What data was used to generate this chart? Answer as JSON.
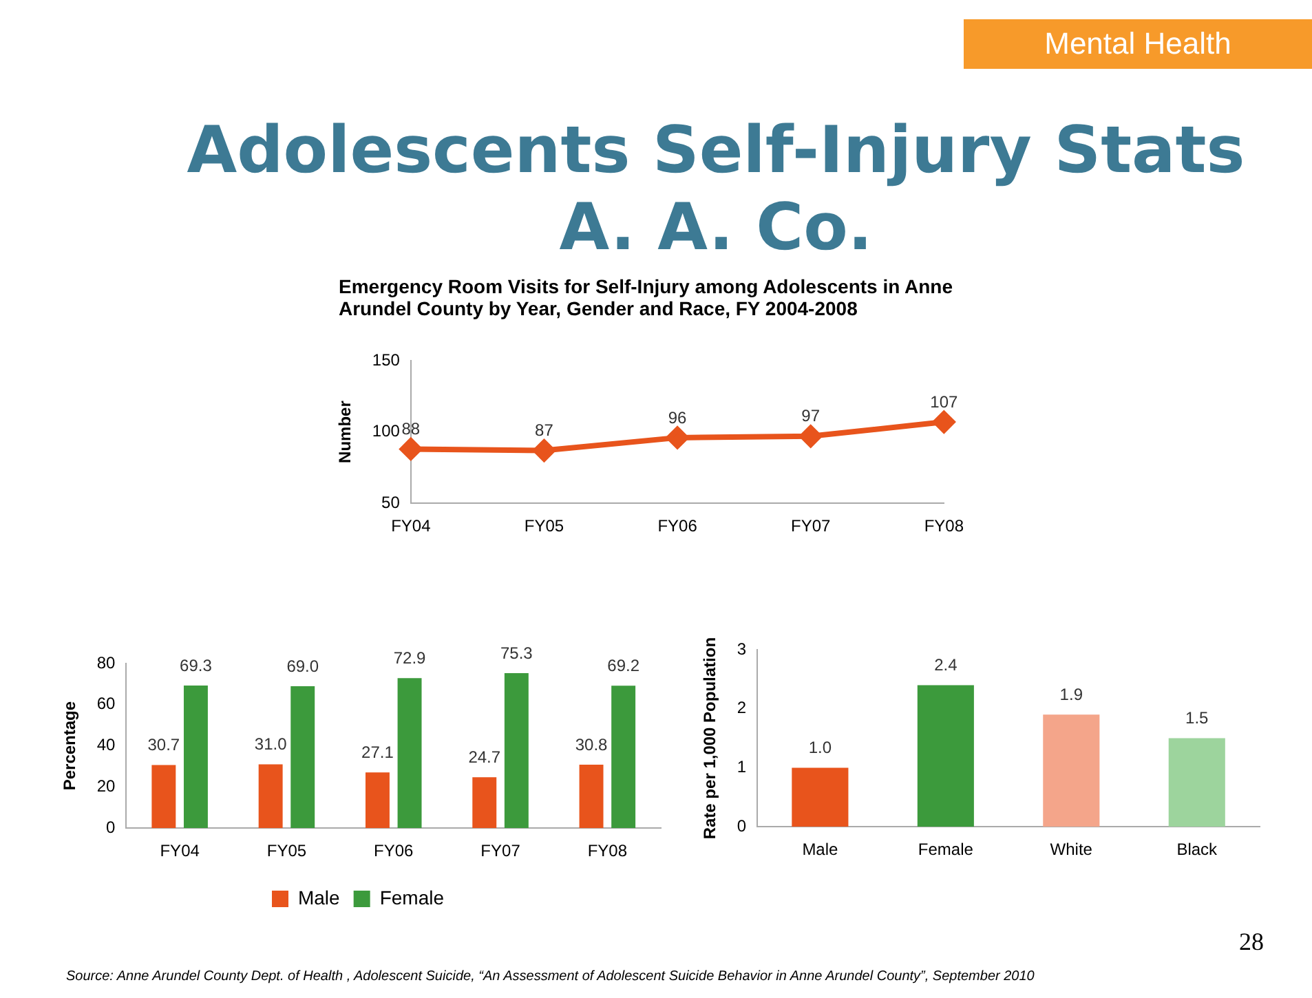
{
  "chart_data": [
    {
      "type": "other",
      "title": "Adolescents Self-Injury Stats A. A. Co.",
      "annotations": [
        "Mental Health",
        "28",
        "Source: Anne Arundel County Dept. of Health , Adolescent Suicide, “An Assessment of Adolescent Suicide Behavior in Anne Arundel County”, September 2010"
      ]
    },
    {
      "type": "line",
      "title": "Emergency Room Visits for Self-Injury among Adolescents in Anne Arundel County by Year, Gender and Race, FY 2004-2008",
      "ylabel": "Number",
      "categories": [
        "FY04",
        "FY05",
        "FY06",
        "FY07",
        "FY08"
      ],
      "series": [
        {
          "color": "#e8541c",
          "values": [
            88,
            87,
            96,
            97,
            107
          ]
        }
      ],
      "ylim": [
        50,
        150
      ],
      "yticks": [
        50,
        100,
        150
      ],
      "marker": "diamond",
      "data_labels": true
    },
    {
      "type": "bar",
      "ylabel": "Percentage",
      "categories": [
        "FY04",
        "FY05",
        "FY06",
        "FY07",
        "FY08"
      ],
      "series": [
        {
          "name": "Male",
          "color": "#e8541c",
          "values": [
            30.7,
            31.0,
            27.1,
            24.7,
            30.8
          ],
          "value_labels": [
            "30.7",
            "31.0",
            "27.1",
            "24.7",
            "30.8"
          ]
        },
        {
          "name": "Female",
          "color": "#3c9a3c",
          "values": [
            69.3,
            69.0,
            72.9,
            75.3,
            69.2
          ],
          "value_labels": [
            "69.3",
            "69.0",
            "72.9",
            "75.3",
            "69.2"
          ]
        }
      ],
      "ylim": [
        0,
        80
      ],
      "yticks": [
        0,
        20,
        40,
        60,
        80
      ],
      "legend": "bottom"
    },
    {
      "type": "bar",
      "ylabel": "Rate per 1,000 Population",
      "categories": [
        "Male",
        "Female",
        "White",
        "Black"
      ],
      "values": [
        1.0,
        2.4,
        1.9,
        1.5
      ],
      "colors": [
        "#e8541c",
        "#3c9a3c",
        "#f4a58a",
        "#9dd49d"
      ],
      "value_labels": [
        "1.0",
        "2.4",
        "1.9",
        "1.5"
      ],
      "ylim": [
        0,
        3
      ],
      "yticks": [
        0,
        1,
        2,
        3
      ]
    }
  ]
}
